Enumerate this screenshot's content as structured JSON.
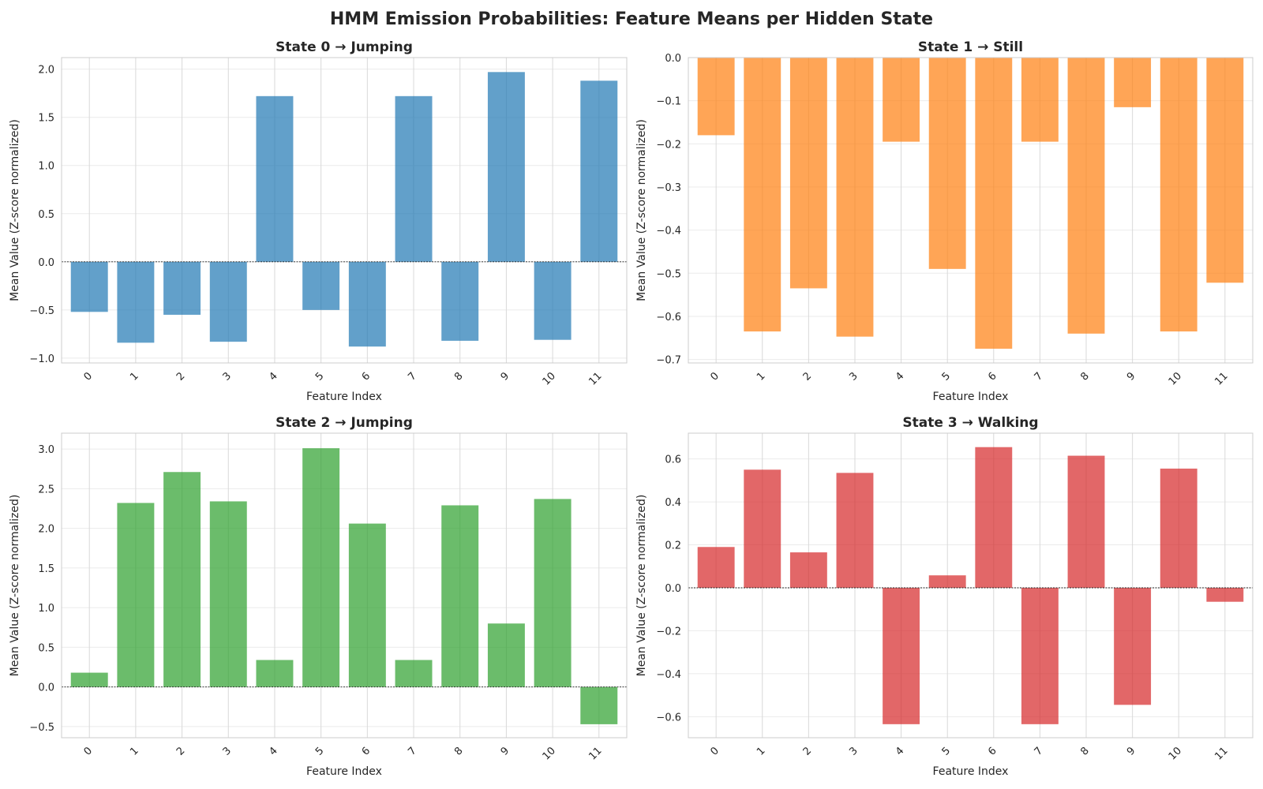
{
  "figure": {
    "title": "HMM Emission Probabilities: Feature Means per Hidden State"
  },
  "chart_data": [
    {
      "type": "bar",
      "title": "State 0 → Jumping",
      "xlabel": "Feature Index",
      "ylabel": "Mean Value (Z-score normalized)",
      "color": "#1f77b4",
      "categories": [
        "0",
        "1",
        "2",
        "3",
        "4",
        "5",
        "6",
        "7",
        "8",
        "9",
        "10",
        "11"
      ],
      "values": [
        -0.52,
        -0.84,
        -0.55,
        -0.83,
        1.72,
        -0.5,
        -0.88,
        1.72,
        -0.82,
        1.97,
        -0.81,
        1.88
      ],
      "ylim": [
        -1.05,
        2.12
      ],
      "yticks": [
        -1.0,
        -0.5,
        0.0,
        0.5,
        1.0,
        1.5,
        2.0
      ],
      "ytick_labels": [
        "−1.0",
        "−0.5",
        "0.0",
        "0.5",
        "1.0",
        "1.5",
        "2.0"
      ],
      "grid": true,
      "zero_line": true
    },
    {
      "type": "bar",
      "title": "State 1 → Still",
      "xlabel": "Feature Index",
      "ylabel": "Mean Value (Z-score normalized)",
      "color": "#ff7f0e",
      "categories": [
        "0",
        "1",
        "2",
        "3",
        "4",
        "5",
        "6",
        "7",
        "8",
        "9",
        "10",
        "11"
      ],
      "values": [
        -0.18,
        -0.635,
        -0.535,
        -0.647,
        -0.195,
        -0.49,
        -0.675,
        -0.195,
        -0.64,
        -0.115,
        -0.635,
        -0.522
      ],
      "ylim": [
        -0.708,
        0.0
      ],
      "yticks": [
        -0.7,
        -0.6,
        -0.5,
        -0.4,
        -0.3,
        -0.2,
        -0.1,
        0.0
      ],
      "ytick_labels": [
        "−0.7",
        "−0.6",
        "−0.5",
        "−0.4",
        "−0.3",
        "−0.2",
        "−0.1",
        "0.0"
      ],
      "grid": true,
      "zero_line": false
    },
    {
      "type": "bar",
      "title": "State 2 → Jumping",
      "xlabel": "Feature Index",
      "ylabel": "Mean Value (Z-score normalized)",
      "color": "#2ca02c",
      "categories": [
        "0",
        "1",
        "2",
        "3",
        "4",
        "5",
        "6",
        "7",
        "8",
        "9",
        "10",
        "11"
      ],
      "values": [
        0.18,
        2.32,
        2.71,
        2.34,
        0.34,
        3.01,
        2.06,
        0.34,
        2.29,
        0.8,
        2.37,
        -0.47
      ],
      "ylim": [
        -0.64,
        3.2
      ],
      "yticks": [
        -0.5,
        0.0,
        0.5,
        1.0,
        1.5,
        2.0,
        2.5,
        3.0
      ],
      "ytick_labels": [
        "−0.5",
        "0.0",
        "0.5",
        "1.0",
        "1.5",
        "2.0",
        "2.5",
        "3.0"
      ],
      "grid": true,
      "zero_line": true
    },
    {
      "type": "bar",
      "title": "State 3 → Walking",
      "xlabel": "Feature Index",
      "ylabel": "Mean Value (Z-score normalized)",
      "color": "#d62728",
      "categories": [
        "0",
        "1",
        "2",
        "3",
        "4",
        "5",
        "6",
        "7",
        "8",
        "9",
        "10",
        "11"
      ],
      "values": [
        0.19,
        0.55,
        0.165,
        0.535,
        -0.635,
        0.058,
        0.655,
        -0.635,
        0.615,
        -0.545,
        0.555,
        -0.065
      ],
      "ylim": [
        -0.698,
        0.72
      ],
      "yticks": [
        -0.6,
        -0.4,
        -0.2,
        0.0,
        0.2,
        0.4,
        0.6
      ],
      "ytick_labels": [
        "−0.6",
        "−0.4",
        "−0.2",
        "0.0",
        "0.2",
        "0.4",
        "0.6"
      ],
      "grid": true,
      "zero_line": true
    }
  ]
}
